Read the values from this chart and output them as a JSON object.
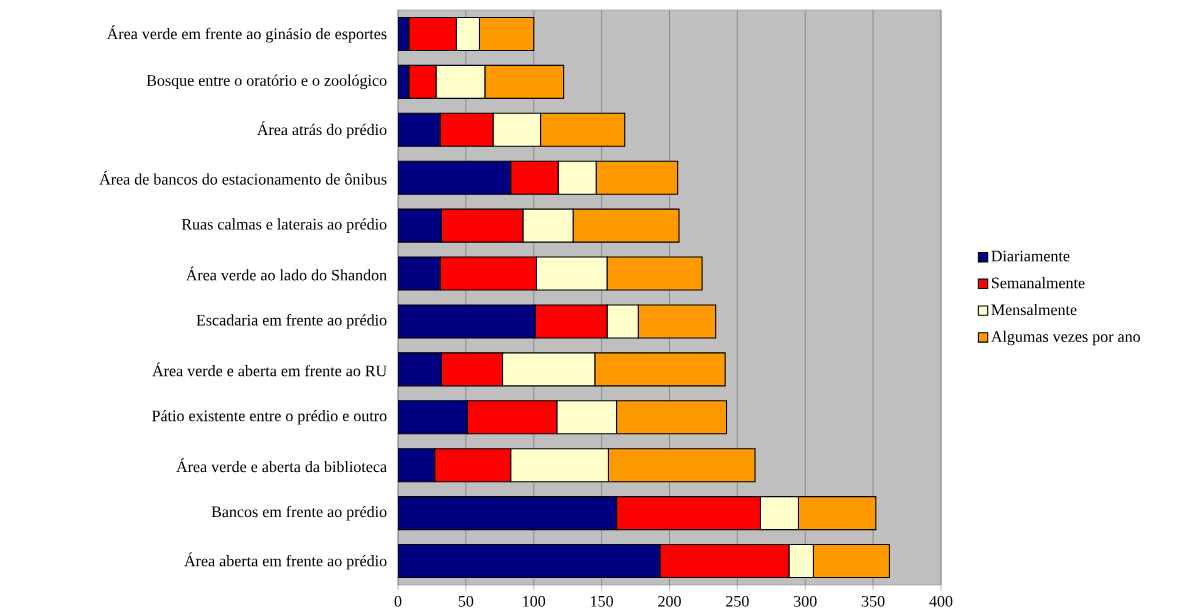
{
  "chart_data": {
    "type": "bar",
    "orientation": "horizontal",
    "stacked": true,
    "categories": [
      "Área verde em frente ao ginásio de esportes",
      "Bosque entre o oratório e o zoológico",
      "Área atrás do prédio",
      "Área de bancos do estacionamento de ônibus",
      "Ruas calmas e laterais ao prédio",
      "Área verde ao lado do Shandon",
      "Escadaria em frente ao prédio",
      "Área verde e aberta em frente ao RU",
      "Pátio existente entre o prédio e outro",
      "Área verde e aberta da biblioteca",
      "Bancos em frente ao prédio",
      "Área aberta em frente ao prédio"
    ],
    "series": [
      {
        "name": "Diariamente",
        "color": "#000080",
        "values": [
          8,
          8,
          31,
          83,
          32,
          31,
          101,
          32,
          51,
          27,
          161,
          193
        ]
      },
      {
        "name": "Semanalmente",
        "color": "#ff0000",
        "values": [
          35,
          20,
          39,
          35,
          60,
          71,
          53,
          45,
          66,
          56,
          106,
          95
        ]
      },
      {
        "name": "Mensalmente",
        "color": "#ffffcc",
        "values": [
          17,
          36,
          35,
          28,
          37,
          52,
          23,
          68,
          44,
          72,
          28,
          18
        ]
      },
      {
        "name": "Algumas vezes por ano",
        "color": "#ff9900",
        "values": [
          40,
          58,
          62,
          60,
          78,
          70,
          57,
          96,
          81,
          108,
          57,
          56
        ]
      }
    ],
    "xlim": [
      0,
      400
    ],
    "xticks": [
      0,
      50,
      100,
      150,
      200,
      250,
      300,
      350,
      400
    ],
    "grid": "x",
    "legend": "right"
  }
}
